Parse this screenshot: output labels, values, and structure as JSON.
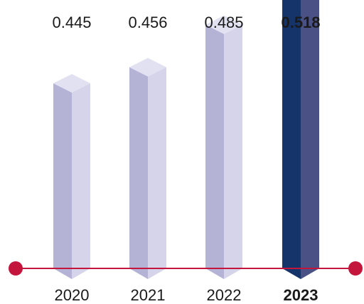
{
  "chart_data": {
    "type": "bar",
    "style": "3d-isometric-columns",
    "categories": [
      "2020",
      "2021",
      "2022",
      "2023"
    ],
    "values": [
      0.445,
      0.456,
      0.485,
      0.518
    ],
    "value_labels": [
      "0.445",
      "0.456",
      "0.485",
      "0.518"
    ],
    "highlight_index": 3,
    "title": "",
    "xlabel": "",
    "ylabel": "",
    "grid": false,
    "legend": "none",
    "colors": {
      "normal_left": "#b4b3d5",
      "normal_right": "#d5d4ea",
      "normal_top": "#e2e1f1",
      "highlight_left": "#15356a",
      "highlight_right": "#4a5185",
      "highlight_top": "#7a7aa4",
      "baseline": "#c4163c",
      "text": "#1a1a1a"
    }
  }
}
